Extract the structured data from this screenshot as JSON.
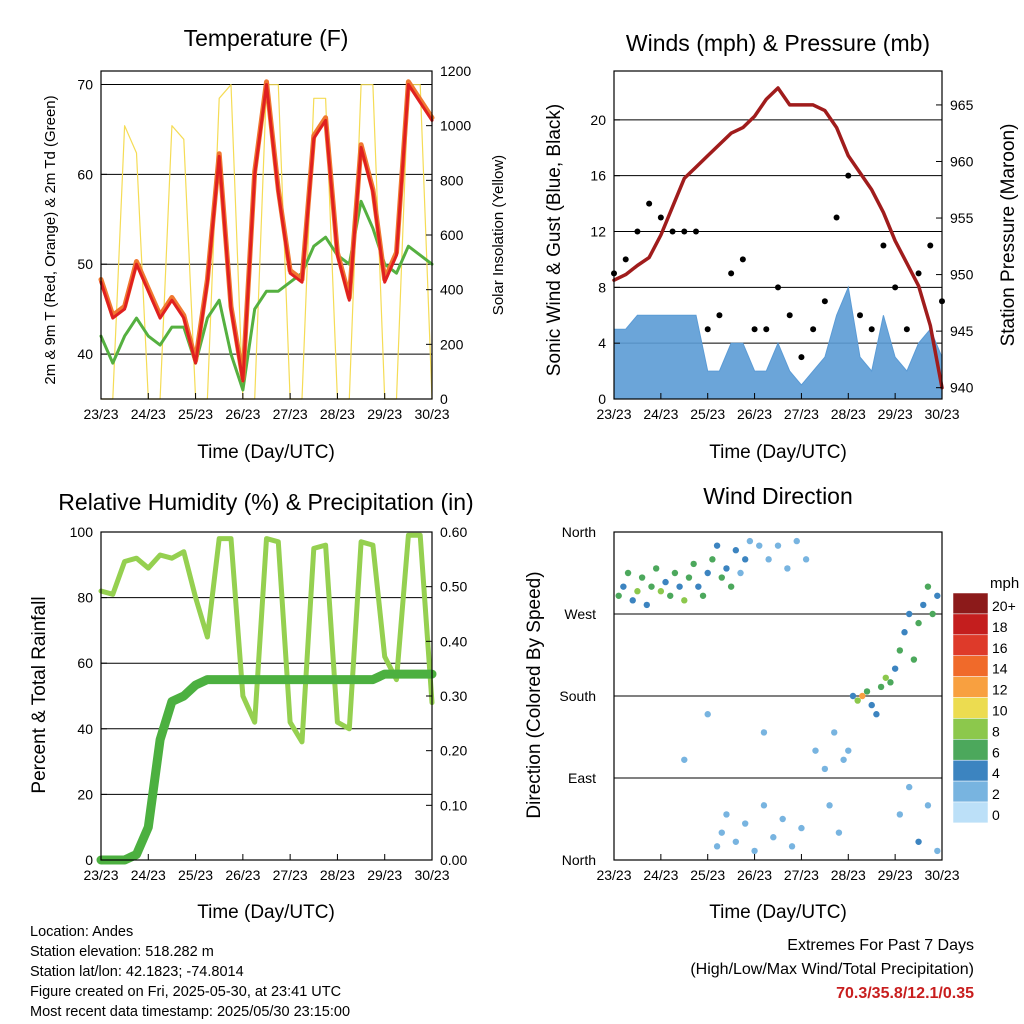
{
  "colors": {
    "temp2m": "#e02020",
    "temp9m": "#f07830",
    "dew": "#55b040",
    "solar": "#f5dc55",
    "wind": "#5b9bd5",
    "gust": "#000000",
    "pressure": "#a01c1c",
    "rh": "#95d050",
    "precip": "#4cb040",
    "extremes": "#c81e1e"
  },
  "x_tick_labels": [
    "23/23",
    "24/23",
    "25/23",
    "26/23",
    "27/23",
    "28/23",
    "29/23",
    "30/23"
  ],
  "x_title": "Time (Day/UTC)",
  "charts": {
    "temperature": {
      "title": "Temperature (F)",
      "ylabel_left": "2m & 9m T (Red, Orange) & 2m Td (Green)",
      "ylabel_right": "Solar Insolation (Yellow)",
      "yticks_left": [
        "40",
        "50",
        "60",
        "70"
      ],
      "yticks_right": [
        "0",
        "200",
        "400",
        "600",
        "800",
        "1000",
        "1200"
      ]
    },
    "winds": {
      "title": "Winds (mph) & Pressure (mb)",
      "ylabel_left": "Sonic Wind & Gust (Blue, Black)",
      "ylabel_right": "Station Pressure (Maroon)",
      "yticks_left": [
        "0",
        "4",
        "8",
        "12",
        "16",
        "20"
      ],
      "yticks_right": [
        "940",
        "945",
        "950",
        "955",
        "960",
        "965"
      ]
    },
    "humidity": {
      "title": "Relative Humidity (%) & Precipitation (in)",
      "ylabel_left": "Percent & Total Rainfall",
      "yticks_left": [
        "0",
        "20",
        "40",
        "60",
        "80",
        "100"
      ],
      "yticks_right": [
        "0.00",
        "0.10",
        "0.20",
        "0.30",
        "0.40",
        "0.50",
        "0.60"
      ]
    },
    "direction": {
      "title": "Wind Direction",
      "ylabel_left": "Direction (Colored By Speed)",
      "yticks_left": [
        "North",
        "East",
        "South",
        "West",
        "North"
      ],
      "legend_title": "mph",
      "legend_labels": [
        "20+",
        "18",
        "16",
        "14",
        "12",
        "10",
        "8",
        "6",
        "4",
        "2",
        "0"
      ],
      "legend_colors": [
        "#8c1a1a",
        "#c41e1e",
        "#de3a2a",
        "#f06a2a",
        "#f8a040",
        "#ecdc50",
        "#8cc84c",
        "#4ca85c",
        "#3c84c0",
        "#78b4e0",
        "#bce0f8"
      ]
    }
  },
  "chart_data": [
    {
      "type": "line",
      "title": "Temperature (F)",
      "xlabel": "Time (Day/UTC)",
      "ylabel": "2m & 9m T (Red, Orange) & 2m Td (Green)",
      "y2label": "Solar Insolation (Yellow)",
      "x": [
        0,
        0.25,
        0.5,
        0.75,
        1,
        1.25,
        1.5,
        1.75,
        2,
        2.25,
        2.5,
        2.75,
        3,
        3.25,
        3.5,
        3.75,
        4,
        4.25,
        4.5,
        4.75,
        5,
        5.25,
        5.5,
        5.75,
        6,
        6.25,
        6.5,
        6.75,
        7
      ],
      "ylim": [
        35,
        71.5
      ],
      "y2lim": [
        0,
        1200
      ],
      "series": [
        {
          "values": [
            48,
            44,
            45,
            50,
            47,
            44,
            46,
            44,
            39,
            48,
            62,
            45,
            37,
            60,
            70,
            58,
            49,
            48,
            64,
            66,
            51,
            46,
            63,
            58,
            48,
            51,
            70,
            68,
            66
          ]
        },
        {
          "values": [
            48.3,
            44.3,
            45.3,
            50.3,
            47.3,
            44.3,
            46.3,
            44.3,
            39.3,
            48.3,
            62.3,
            45.3,
            37.3,
            60.3,
            70.3,
            58.3,
            49.3,
            48.3,
            64.3,
            66.3,
            51.3,
            46.3,
            63.3,
            58.3,
            48.3,
            51.3,
            70.3,
            68.3,
            66.3
          ]
        },
        {
          "values": [
            42,
            39,
            42,
            44,
            42,
            41,
            43,
            43,
            39,
            44,
            46,
            40,
            36,
            45,
            47,
            47,
            48,
            49,
            52,
            53,
            51,
            50,
            57,
            54,
            50,
            49,
            52,
            51,
            50
          ]
        },
        {
          "values": [
            0,
            0,
            1000,
            900,
            0,
            0,
            1000,
            950,
            0,
            0,
            1100,
            1150,
            0,
            0,
            1150,
            1150,
            0,
            0,
            1100,
            1100,
            0,
            0,
            1150,
            1150,
            0,
            0,
            1150,
            1150,
            0
          ]
        }
      ]
    },
    {
      "type": "line",
      "title": "Winds (mph) & Pressure (mb)",
      "xlabel": "Time (Day/UTC)",
      "ylabel": "Sonic Wind & Gust (Blue, Black)",
      "y2label": "Station Pressure (Maroon)",
      "x": [
        0,
        0.25,
        0.5,
        0.75,
        1,
        1.25,
        1.5,
        1.75,
        2,
        2.25,
        2.5,
        2.75,
        3,
        3.25,
        3.5,
        3.75,
        4,
        4.25,
        4.5,
        4.75,
        5,
        5.25,
        5.5,
        5.75,
        6,
        6.25,
        6.5,
        6.75,
        7
      ],
      "ylim": [
        0,
        23.5
      ],
      "y2lim": [
        939,
        968
      ],
      "series": [
        {
          "values": [
            5,
            5,
            6,
            6,
            6,
            6,
            6,
            6,
            2,
            2,
            4,
            4,
            2,
            2,
            4,
            2,
            1,
            2,
            3,
            6,
            8,
            3,
            2,
            6,
            3,
            2,
            4,
            5,
            3
          ]
        },
        {
          "values": [
            9,
            10,
            12,
            14,
            13,
            12,
            12,
            12,
            5,
            6,
            9,
            10,
            5,
            5,
            8,
            6,
            3,
            5,
            7,
            13,
            16,
            6,
            5,
            11,
            8,
            5,
            9,
            11,
            7
          ]
        },
        {
          "values": [
            949.5,
            950,
            950.8,
            951.5,
            953.5,
            956,
            958.5,
            959.5,
            960.5,
            961.5,
            962.5,
            963,
            964,
            965.5,
            966.5,
            965,
            965,
            965,
            964.5,
            963,
            960.5,
            959,
            957.5,
            955.5,
            953,
            951,
            949,
            945.5,
            940
          ]
        }
      ]
    },
    {
      "type": "line",
      "title": "Relative Humidity (%) & Precipitation (in)",
      "xlabel": "Time (Day/UTC)",
      "ylabel": "Percent & Total Rainfall",
      "x": [
        0,
        0.25,
        0.5,
        0.75,
        1,
        1.25,
        1.5,
        1.75,
        2,
        2.25,
        2.5,
        2.75,
        3,
        3.25,
        3.5,
        3.75,
        4,
        4.25,
        4.5,
        4.75,
        5,
        5.25,
        5.5,
        5.75,
        6,
        6.25,
        6.5,
        6.75,
        7
      ],
      "ylim": [
        0,
        100
      ],
      "y2lim": [
        0,
        0.6
      ],
      "series": [
        {
          "values": [
            82,
            81,
            91,
            92,
            89,
            93,
            92,
            94,
            80,
            68,
            98,
            98,
            50,
            42,
            98,
            97,
            42,
            36,
            95,
            96,
            42,
            40,
            97,
            96,
            62,
            55,
            99,
            99,
            48
          ]
        },
        {
          "values": [
            0,
            0,
            0,
            0.01,
            0.06,
            0.22,
            0.29,
            0.3,
            0.32,
            0.33,
            0.33,
            0.33,
            0.33,
            0.33,
            0.33,
            0.33,
            0.33,
            0.33,
            0.33,
            0.33,
            0.33,
            0.33,
            0.33,
            0.33,
            0.34,
            0.34,
            0.34,
            0.34,
            0.34
          ]
        }
      ]
    },
    {
      "type": "scatter",
      "title": "Wind Direction",
      "xlabel": "Time (Day/UTC)",
      "ylabel": "Direction (Colored By Speed)",
      "ylim": [
        0,
        360
      ],
      "points": [
        [
          0.1,
          290,
          6
        ],
        [
          0.2,
          300,
          4
        ],
        [
          0.3,
          315,
          5
        ],
        [
          0.4,
          285,
          3
        ],
        [
          0.5,
          295,
          7
        ],
        [
          0.6,
          310,
          5
        ],
        [
          0.7,
          280,
          4
        ],
        [
          0.8,
          300,
          6
        ],
        [
          0.9,
          320,
          5
        ],
        [
          1.0,
          295,
          7
        ],
        [
          1.1,
          305,
          4
        ],
        [
          1.2,
          290,
          6
        ],
        [
          1.3,
          315,
          5
        ],
        [
          1.4,
          300,
          4
        ],
        [
          1.5,
          285,
          7
        ],
        [
          1.6,
          310,
          6
        ],
        [
          1.7,
          325,
          5
        ],
        [
          1.8,
          300,
          4
        ],
        [
          1.9,
          290,
          6
        ],
        [
          2.0,
          315,
          3
        ],
        [
          2.1,
          330,
          6
        ],
        [
          2.2,
          345,
          4
        ],
        [
          2.3,
          310,
          5
        ],
        [
          2.4,
          320,
          3
        ],
        [
          2.5,
          300,
          6
        ],
        [
          2.6,
          340,
          4
        ],
        [
          2.7,
          315,
          2
        ],
        [
          2.8,
          330,
          3
        ],
        [
          2.9,
          350,
          2
        ],
        [
          3.1,
          345,
          1
        ],
        [
          3.3,
          330,
          1
        ],
        [
          3.5,
          345,
          2
        ],
        [
          3.7,
          320,
          1
        ],
        [
          3.9,
          350,
          1
        ],
        [
          4.1,
          330,
          1
        ],
        [
          4.3,
          120,
          1
        ],
        [
          4.5,
          100,
          1
        ],
        [
          4.7,
          140,
          2
        ],
        [
          4.9,
          110,
          1
        ],
        [
          5.1,
          180,
          4
        ],
        [
          5.2,
          175,
          8
        ],
        [
          5.3,
          180,
          11
        ],
        [
          5.4,
          185,
          6
        ],
        [
          5.5,
          170,
          4
        ],
        [
          5.6,
          160,
          3
        ],
        [
          5.7,
          190,
          5
        ],
        [
          5.8,
          200,
          7
        ],
        [
          5.9,
          195,
          6
        ],
        [
          6.0,
          210,
          4
        ],
        [
          6.1,
          230,
          5
        ],
        [
          6.2,
          250,
          3
        ],
        [
          6.3,
          270,
          4
        ],
        [
          6.4,
          220,
          6
        ],
        [
          6.5,
          260,
          5
        ],
        [
          6.6,
          280,
          4
        ],
        [
          6.7,
          300,
          6
        ],
        [
          6.8,
          270,
          5
        ],
        [
          6.9,
          290,
          4
        ],
        [
          2.2,
          15,
          2
        ],
        [
          2.3,
          30,
          1
        ],
        [
          2.4,
          50,
          2
        ],
        [
          2.6,
          20,
          1
        ],
        [
          2.8,
          40,
          2
        ],
        [
          3.0,
          10,
          1
        ],
        [
          3.2,
          60,
          1
        ],
        [
          3.4,
          25,
          2
        ],
        [
          3.6,
          45,
          1
        ],
        [
          3.8,
          15,
          1
        ],
        [
          4.0,
          35,
          2
        ],
        [
          6.1,
          50,
          1
        ],
        [
          6.3,
          80,
          2
        ],
        [
          6.5,
          20,
          3
        ],
        [
          6.7,
          60,
          1
        ],
        [
          6.9,
          10,
          2
        ],
        [
          4.6,
          60,
          1
        ],
        [
          4.8,
          30,
          1
        ],
        [
          5.0,
          120,
          2
        ],
        [
          3.2,
          140,
          1
        ],
        [
          2.0,
          160,
          1
        ],
        [
          1.5,
          110,
          1
        ]
      ]
    }
  ],
  "info": {
    "location": "Location: Andes",
    "elevation": "Station elevation: 518.282 m",
    "latlon": "Station lat/lon: 42.1823; -74.8014",
    "created": "Figure created on Fri, 2025-05-30, at 23:41 UTC",
    "recent": "Most recent data timestamp: 2025/05/30 23:15:00"
  },
  "extremes": {
    "title": "Extremes For Past 7 Days",
    "subtitle": "(High/Low/Max Wind/Total Precipitation)",
    "values": "70.3/35.8/12.1/0.35"
  }
}
